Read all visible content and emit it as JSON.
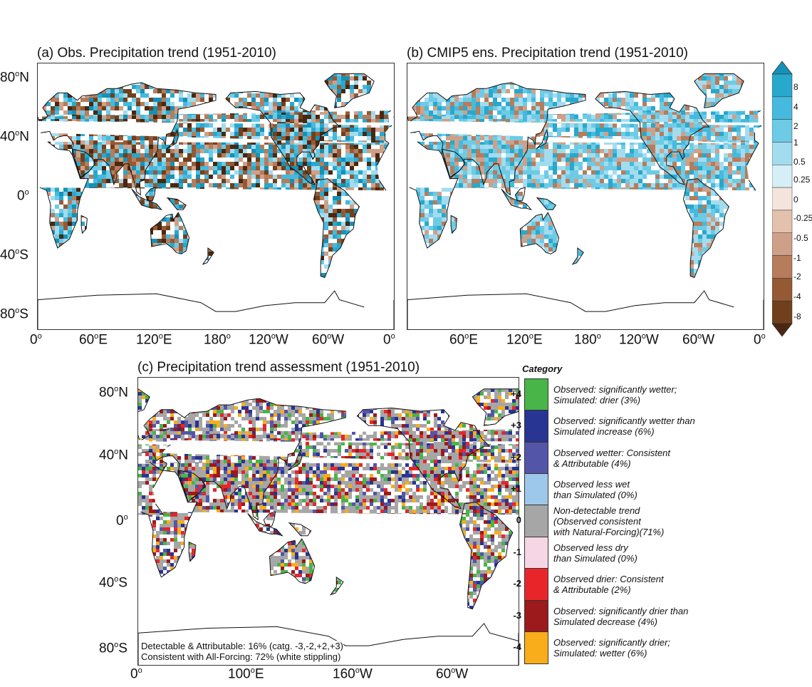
{
  "panels": {
    "a_title": "(a) Obs. Precipitation trend (1951-2010)",
    "b_title": "(b) CMIP5 ens. Precipitation trend (1951-2010)",
    "c_title": "(c) Precipitation trend assessment (1951-2010)"
  },
  "top_y_ticks": [
    "80ºN",
    "40ºN",
    "0º",
    "40ºS",
    "80ºS"
  ],
  "top_x_ticks": [
    "0º",
    "60ºE",
    "120ºE",
    "180º",
    "120ºW",
    "60ºW",
    "0º"
  ],
  "bottom_y_ticks": [
    "80ºN",
    "40ºN",
    "0º",
    "40ºS",
    "80ºS"
  ],
  "bottom_x_ticks": [
    "0º",
    "100ºE",
    "160ºW",
    "60ºW"
  ],
  "colorbar": {
    "labels": [
      "8",
      "4",
      "2",
      "1",
      "0.5",
      "0.25",
      "0",
      "-0.25",
      "-0.5",
      "-1",
      "-2",
      "-4",
      "-8"
    ],
    "colors": [
      "#1591b8",
      "#28a8cc",
      "#45bade",
      "#6dcbe6",
      "#a3dcef",
      "#d6eff7",
      "#f5e4dc",
      "#e3c1ad",
      "#cfa088",
      "#b67c5b",
      "#955a34",
      "#70401d",
      "#4a2710"
    ]
  },
  "category": {
    "header": "Category",
    "items": [
      {
        "num": "+4",
        "color": "#47b547",
        "text": "Observed: significantly wetter;\nSimulated: drier (3%)"
      },
      {
        "num": "+3",
        "color": "#283593",
        "text": "Observed: significantly wetter than\nSimulated increase (6%)"
      },
      {
        "num": "+2",
        "color": "#5356a8",
        "text": "Observed wetter: Consistent\n& Attributable (4%)"
      },
      {
        "num": "+1",
        "color": "#9ec8ea",
        "text": "Observed less wet\nthan Simulated (0%)"
      },
      {
        "num": "0",
        "color": "#a6a6a6",
        "text": "Non-detectable trend\n(Observed consistent\nwith Natural-Forcing)(71%)"
      },
      {
        "num": "-1",
        "color": "#f6d6e4",
        "text": "Observed less dry\nthan Simulated (0%)"
      },
      {
        "num": "-2",
        "color": "#e8262a",
        "text": "Observed drier: Consistent\n& Attributable (2%)"
      },
      {
        "num": "-3",
        "color": "#9c1a1c",
        "text": "Observed: significantly drier than\nSimulated decrease (4%)"
      },
      {
        "num": "-4",
        "color": "#f9ad1a",
        "text": "Observed: significantly drier;\nSimulated: wetter (6%)"
      }
    ]
  },
  "notes": {
    "line1": "Detectable & Attributable: 16% (catg. -3,-2,+2,+3)",
    "line2": "Consistent with All-Forcing: 72% (white stippling)"
  }
}
